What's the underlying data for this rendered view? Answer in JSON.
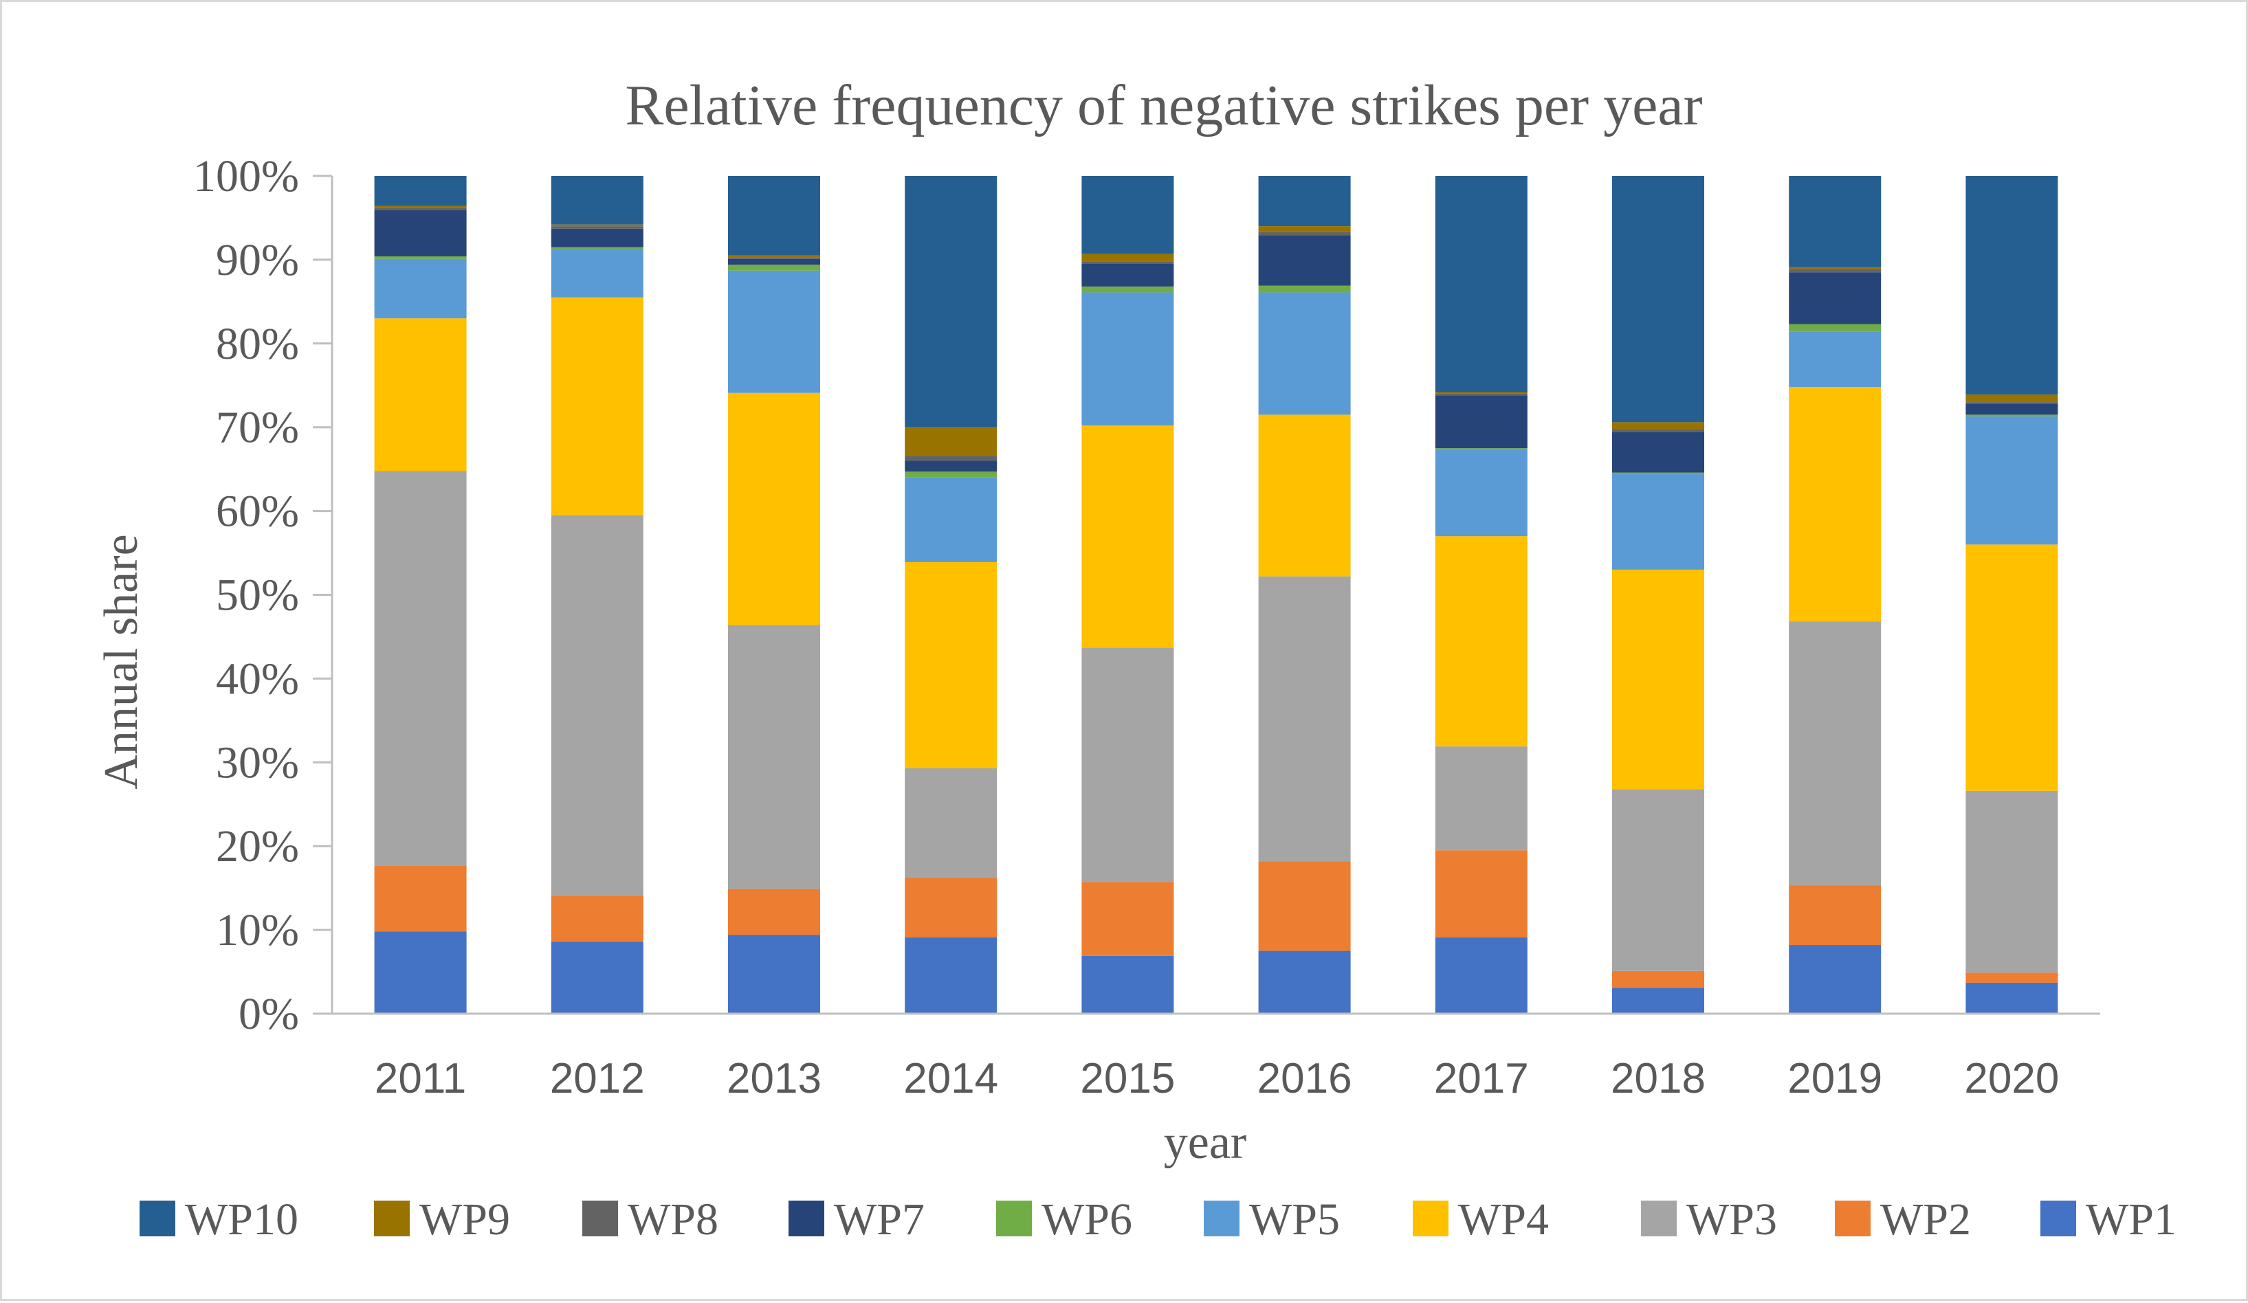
{
  "chart_data": {
    "type": "bar",
    "stacked": true,
    "title": "Relative frequency of negative strikes per year",
    "xlabel": "year",
    "ylabel": "Annual share",
    "ylim": [
      0,
      100
    ],
    "yticks": [
      "0%",
      "10%",
      "20%",
      "30%",
      "40%",
      "50%",
      "60%",
      "70%",
      "80%",
      "90%",
      "100%"
    ],
    "grid": false,
    "legend_position": "bottom",
    "legend_order": [
      "WP10",
      "WP9",
      "WP8",
      "WP7",
      "WP6",
      "WP5",
      "WP4",
      "WP3",
      "WP2",
      "WP1"
    ],
    "categories": [
      "2011",
      "2012",
      "2013",
      "2014",
      "2015",
      "2016",
      "2017",
      "2018",
      "2019",
      "2020"
    ],
    "series": [
      {
        "name": "WP1",
        "color": "#4472C4",
        "values": [
          9.8,
          8.6,
          9.4,
          9.1,
          6.9,
          7.5,
          9.1,
          3.1,
          8.2,
          3.7
        ]
      },
      {
        "name": "WP2",
        "color": "#ED7D31",
        "values": [
          7.9,
          5.5,
          5.5,
          7.1,
          8.8,
          10.7,
          10.4,
          2.0,
          7.1,
          1.2
        ]
      },
      {
        "name": "WP3",
        "color": "#A5A5A5",
        "values": [
          47.1,
          45.4,
          31.5,
          13.1,
          28.0,
          34.0,
          12.4,
          21.7,
          31.5,
          21.7
        ]
      },
      {
        "name": "WP4",
        "color": "#FFC000",
        "values": [
          18.2,
          26.0,
          27.7,
          24.6,
          26.5,
          19.3,
          25.1,
          26.2,
          28.0,
          29.4
        ]
      },
      {
        "name": "WP5",
        "color": "#5B9BD5",
        "values": [
          7.1,
          5.8,
          14.6,
          10.1,
          15.9,
          14.6,
          10.3,
          11.4,
          6.6,
          15.3
        ]
      },
      {
        "name": "WP6",
        "color": "#70AD47",
        "values": [
          0.3,
          0.2,
          0.7,
          0.7,
          0.7,
          0.8,
          0.2,
          0.2,
          0.9,
          0.2
        ]
      },
      {
        "name": "WP7",
        "color": "#264478",
        "values": [
          5.5,
          2.2,
          0.7,
          1.3,
          2.7,
          6.0,
          6.3,
          4.8,
          6.2,
          1.3
        ]
      },
      {
        "name": "WP8",
        "color": "#636363",
        "values": [
          0.3,
          0.3,
          0.2,
          0.6,
          0.3,
          0.4,
          0.2,
          0.4,
          0.4,
          0.2
        ]
      },
      {
        "name": "WP9",
        "color": "#997300",
        "values": [
          0.2,
          0.2,
          0.2,
          3.4,
          0.9,
          0.7,
          0.2,
          0.8,
          0.2,
          0.9
        ]
      },
      {
        "name": "WP10",
        "color": "#255E91",
        "values": [
          3.6,
          5.8,
          9.5,
          30.0,
          9.3,
          6.0,
          25.8,
          29.4,
          10.9,
          26.1
        ]
      }
    ]
  }
}
